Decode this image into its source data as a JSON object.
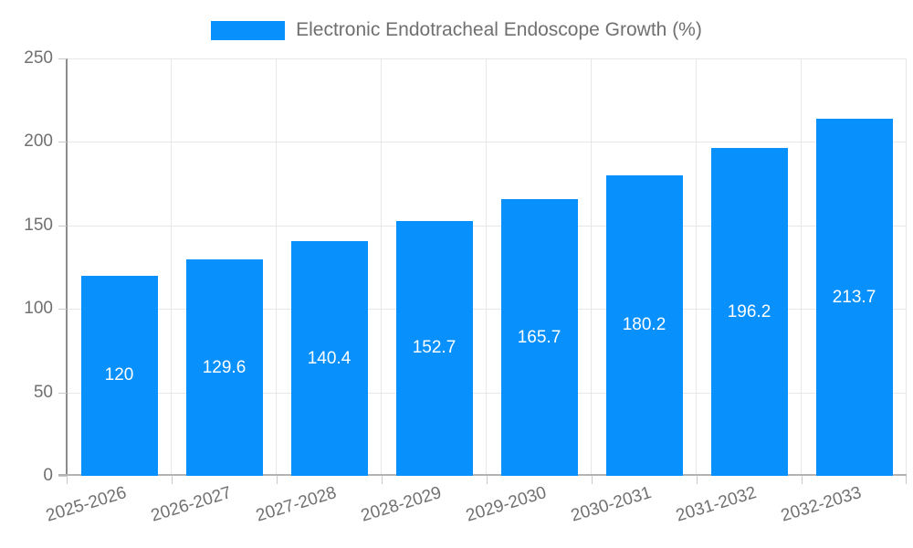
{
  "legend": {
    "label": "Electronic Endotracheal Endoscope Growth (%)"
  },
  "colors": {
    "bar": "#0890fc",
    "grid": "#e7e7e7",
    "axis_y": "#8c8c8c",
    "axis_x": "#b3b3b3",
    "tick": "#c9c9c9",
    "text": "#707070",
    "value_label": "#ffffff",
    "background": "#ffffff"
  },
  "chart_data": {
    "type": "bar",
    "title": "Electronic Endotracheal Endoscope Growth (%)",
    "categories": [
      "2025-2026",
      "2026-2027",
      "2027-2028",
      "2028-2029",
      "2029-2030",
      "2030-2031",
      "2031-2032",
      "2032-2033"
    ],
    "values": [
      120,
      129.6,
      140.4,
      152.7,
      165.7,
      180.2,
      196.2,
      213.7
    ],
    "value_labels": [
      "120",
      "129.6",
      "140.4",
      "152.7",
      "165.7",
      "180.2",
      "196.2",
      "213.7"
    ],
    "xlabel": "",
    "ylabel": "",
    "ylim": [
      0,
      250
    ],
    "yticks": [
      0,
      50,
      100,
      150,
      200,
      250
    ],
    "grid": true,
    "legend_position": "top-center",
    "value_label_position": "inside-center"
  }
}
